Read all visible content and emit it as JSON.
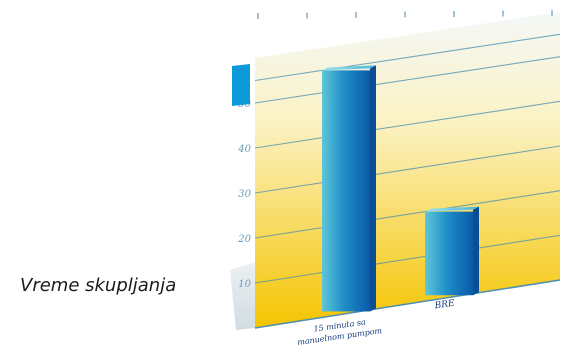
{
  "side_label": "Vreme skupljanja",
  "colors": {
    "background_top": "#f4f8f8",
    "background_mid": "#fdf0b0",
    "background_bottom": "#f5c400",
    "bar_light": "#5fc7d8",
    "bar_dark": "#0a5aa8",
    "accent_block": "#0a9ad8",
    "gridline": "#4a8fb0",
    "tick_text": "#6a9ab8",
    "axis_text": "#143a7a"
  },
  "chart_data": {
    "type": "bar",
    "title": "",
    "xlabel": "",
    "ylabel": "",
    "categories": [
      "15 minuta sa manuelnom pumpom",
      "BRE"
    ],
    "values": [
      55,
      20
    ],
    "ylim": [
      0,
      60
    ],
    "yticks": [
      10,
      20,
      30,
      40,
      50,
      55
    ],
    "grid": true,
    "legend": "none",
    "style": "3d"
  }
}
